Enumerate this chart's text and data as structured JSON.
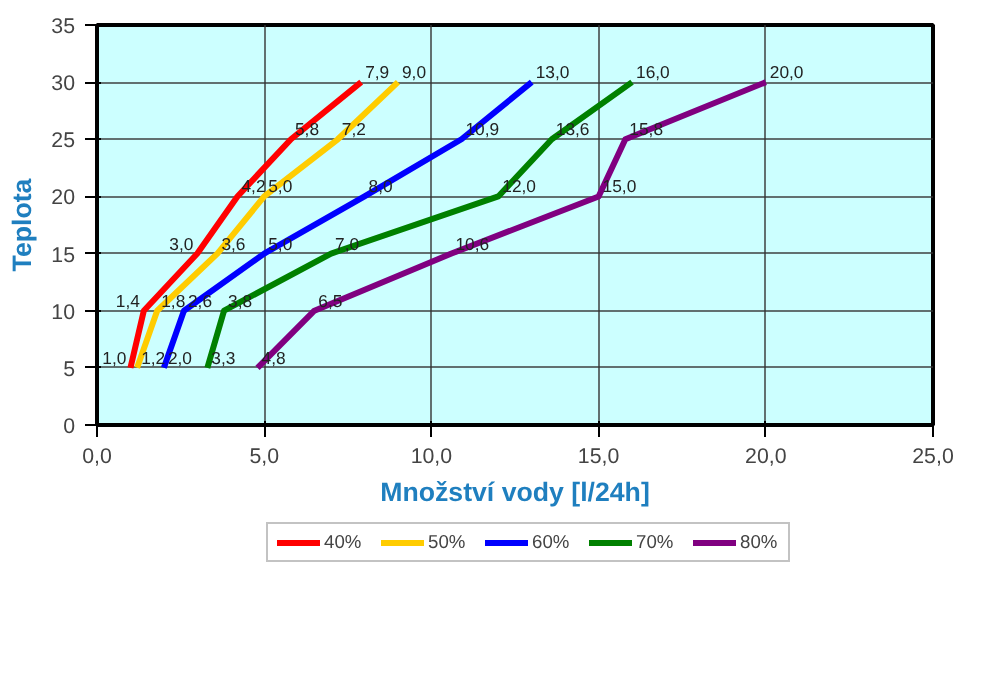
{
  "chart_data": {
    "type": "line",
    "xlabel": "Množství vody [l/24h]",
    "ylabel": "Teplota",
    "xlim": [
      0,
      25
    ],
    "xticks": [
      {
        "value": 0,
        "label": "0,0"
      },
      {
        "value": 5,
        "label": "5,0"
      },
      {
        "value": 10,
        "label": "10,0"
      },
      {
        "value": 15,
        "label": "15,0"
      },
      {
        "value": 20,
        "label": "20,0"
      },
      {
        "value": 25,
        "label": "25,0"
      }
    ],
    "ylim": [
      0,
      35
    ],
    "yticks": [
      0,
      5,
      10,
      15,
      20,
      25,
      30,
      35
    ],
    "grid": true,
    "legend": "bottom",
    "line_style": "solid",
    "marker": "none",
    "series": [
      {
        "name": "40%",
        "color": "#ff0000",
        "x": [
          1.0,
          1.4,
          3.0,
          4.2,
          5.8,
          7.9
        ],
        "values": [
          5,
          10,
          15,
          20,
          25,
          30
        ]
      },
      {
        "name": "50%",
        "color": "#ffcc00",
        "x": [
          1.2,
          1.8,
          3.6,
          5.0,
          7.2,
          9.0
        ],
        "values": [
          5,
          10,
          15,
          20,
          25,
          30
        ]
      },
      {
        "name": "60%",
        "color": "#0000ff",
        "x": [
          2.0,
          2.6,
          5.0,
          8.0,
          10.9,
          13.0
        ],
        "values": [
          5,
          10,
          15,
          20,
          25,
          30
        ]
      },
      {
        "name": "70%",
        "color": "#008000",
        "x": [
          3.3,
          3.8,
          7.0,
          12.0,
          13.6,
          16.0
        ],
        "values": [
          5,
          10,
          15,
          20,
          25,
          30
        ]
      },
      {
        "name": "80%",
        "color": "#800080",
        "x": [
          4.8,
          6.5,
          10.6,
          15.0,
          15.8,
          20.0
        ],
        "values": [
          5,
          10,
          15,
          20,
          25,
          30
        ]
      }
    ],
    "annotations": [
      {
        "text": "1,0",
        "x": 1.0,
        "y": 5
      },
      {
        "text": "1,4",
        "x": 1.4,
        "y": 10
      },
      {
        "text": "3,0",
        "x": 3.0,
        "y": 15
      },
      {
        "text": "4,2",
        "x": 4.2,
        "y": 20
      },
      {
        "text": "5,8",
        "x": 5.8,
        "y": 25
      },
      {
        "text": "7,9",
        "x": 7.9,
        "y": 30
      },
      {
        "text": "1,2",
        "x": 1.2,
        "y": 5
      },
      {
        "text": "1,8",
        "x": 1.8,
        "y": 10
      },
      {
        "text": "3,6",
        "x": 3.6,
        "y": 15
      },
      {
        "text": "5,0",
        "x": 5.0,
        "y": 20
      },
      {
        "text": "7,2",
        "x": 7.2,
        "y": 25
      },
      {
        "text": "9,0",
        "x": 9.0,
        "y": 30
      },
      {
        "text": "2,0",
        "x": 2.0,
        "y": 5
      },
      {
        "text": "2,6",
        "x": 2.6,
        "y": 10
      },
      {
        "text": "5,0",
        "x": 5.0,
        "y": 15
      },
      {
        "text": "8,0",
        "x": 8.0,
        "y": 20
      },
      {
        "text": "10,9",
        "x": 10.9,
        "y": 25
      },
      {
        "text": "13,0",
        "x": 13.0,
        "y": 30
      },
      {
        "text": "3,3",
        "x": 3.3,
        "y": 5
      },
      {
        "text": "3,8",
        "x": 3.8,
        "y": 10
      },
      {
        "text": "7,0",
        "x": 7.0,
        "y": 15
      },
      {
        "text": "12,0",
        "x": 12.0,
        "y": 20
      },
      {
        "text": "13,6",
        "x": 13.6,
        "y": 25
      },
      {
        "text": "16,0",
        "x": 16.0,
        "y": 30
      },
      {
        "text": "4,8",
        "x": 4.8,
        "y": 5
      },
      {
        "text": "6,5",
        "x": 6.5,
        "y": 10
      },
      {
        "text": "10,6",
        "x": 10.6,
        "y": 15
      },
      {
        "text": "15,0",
        "x": 15.0,
        "y": 20
      },
      {
        "text": "15,8",
        "x": 15.8,
        "y": 25
      },
      {
        "text": "20,0",
        "x": 20.0,
        "y": 30
      }
    ]
  }
}
